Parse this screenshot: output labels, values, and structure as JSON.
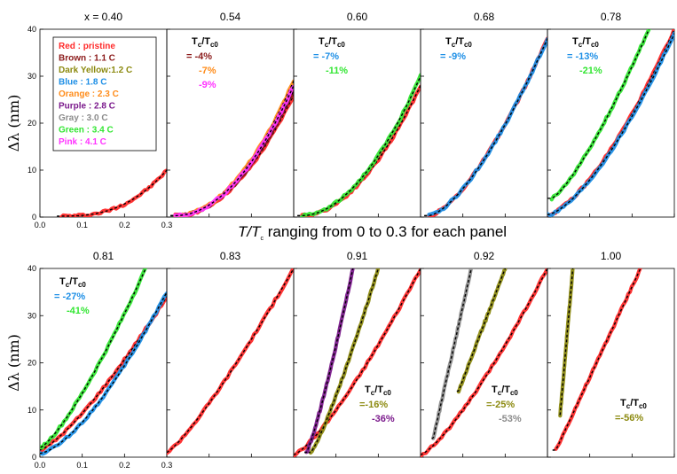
{
  "figure": {
    "mid_label_pre": "T/T",
    "mid_label_sub": "c",
    "mid_label_post": " ranging from 0 to 0.3 for each panel",
    "ylabel": "Δλ (nm)",
    "tc_header": "Tc/Tc0",
    "legend": [
      {
        "label": "Red : pristine",
        "color": "#ff2a2a"
      },
      {
        "label": "Brown : 1.1 C",
        "color": "#8b1a1a"
      },
      {
        "label": "Dark Yellow:1.2 C",
        "color": "#8c8a10"
      },
      {
        "label": "Blue : 1.8 C",
        "color": "#1e8fe6"
      },
      {
        "label": "Orange : 2.3 C",
        "color": "#ff8c1a"
      },
      {
        "label": "Purple : 2.8 C",
        "color": "#7b1a8c"
      },
      {
        "label": "Gray : 3.0 C",
        "color": "#8c8c8c"
      },
      {
        "label": "Green : 3.4 C",
        "color": "#33e633"
      },
      {
        "label": "Pink : 4.1 C",
        "color": "#ff33ff"
      }
    ],
    "colors": {
      "red": "#ff2a2a",
      "brown": "#8b1a1a",
      "darkyellow": "#8c8a10",
      "blue": "#1e8fe6",
      "orange": "#ff8c1a",
      "purple": "#7b1a8c",
      "gray": "#8c8c8c",
      "green": "#33e633",
      "pink": "#ff33ff",
      "fit": "#000000"
    }
  },
  "chart_data": [
    {
      "type": "line",
      "title": "x = 0.40",
      "xlim": [
        0,
        0.3
      ],
      "ylim": [
        0,
        40
      ],
      "xticks": [
        "0.0",
        "0.1",
        "0.2",
        "0.3"
      ],
      "yticks": [
        "0",
        "10",
        "20",
        "30",
        "40"
      ],
      "ylabel": "Δλ (nm)",
      "annotation": null,
      "series": [
        {
          "name": "Red : pristine",
          "color": "red",
          "x0": 0.05,
          "x1": 0.3,
          "y0": 0.2,
          "y1": 10,
          "p": 2.6
        }
      ]
    },
    {
      "type": "line",
      "title": "0.54",
      "xlim": [
        0,
        0.3
      ],
      "ylim": [
        0,
        40
      ],
      "annotation": {
        "values": [
          {
            "text": "= -4%",
            "color": "brown"
          },
          {
            "text": "-7%",
            "color": "orange"
          },
          {
            "text": "-9%",
            "color": "pink"
          }
        ]
      },
      "series": [
        {
          "name": "Red : pristine",
          "color": "red",
          "x0": 0.02,
          "x1": 0.3,
          "y0": 0.3,
          "y1": 26,
          "p": 2.0
        },
        {
          "name": "Brown : 1.1 C",
          "color": "brown",
          "x0": 0.02,
          "x1": 0.3,
          "y0": 0.3,
          "y1": 27,
          "p": 2.0
        },
        {
          "name": "Orange : 2.3 C",
          "color": "orange",
          "x0": 0.02,
          "x1": 0.3,
          "y0": 0.3,
          "y1": 29,
          "p": 2.0
        },
        {
          "name": "Pink : 4.1 C",
          "color": "pink",
          "x0": 0.02,
          "x1": 0.3,
          "y0": 0.3,
          "y1": 28,
          "p": 2.0
        }
      ]
    },
    {
      "type": "line",
      "title": "0.60",
      "xlim": [
        0,
        0.3
      ],
      "ylim": [
        0,
        40
      ],
      "annotation": {
        "values": [
          {
            "text": "= -7%",
            "color": "blue"
          },
          {
            "text": "-11%",
            "color": "green"
          }
        ]
      },
      "series": [
        {
          "name": "Red : pristine",
          "color": "red",
          "x0": 0.02,
          "x1": 0.3,
          "y0": 0.3,
          "y1": 28,
          "p": 1.9
        },
        {
          "name": "Green : 3.4 C",
          "color": "green",
          "x0": 0.02,
          "x1": 0.3,
          "y0": 0.3,
          "y1": 30,
          "p": 1.9
        }
      ]
    },
    {
      "type": "line",
      "title": "0.68",
      "xlim": [
        0,
        0.3
      ],
      "ylim": [
        0,
        40
      ],
      "annotation": {
        "values": [
          {
            "text": "= -9%",
            "color": "blue"
          }
        ]
      },
      "series": [
        {
          "name": "Red : pristine",
          "color": "red",
          "x0": 0.02,
          "x1": 0.3,
          "y0": 0.3,
          "y1": 38,
          "p": 1.5
        },
        {
          "name": "Blue : 1.8 C",
          "color": "blue",
          "x0": 0.02,
          "x1": 0.3,
          "y0": 0.3,
          "y1": 38,
          "p": 1.5
        }
      ]
    },
    {
      "type": "line",
      "title": "0.78",
      "xlim": [
        0,
        0.3
      ],
      "ylim": [
        0,
        40
      ],
      "annotation": {
        "values": [
          {
            "text": "= -13%",
            "color": "blue"
          },
          {
            "text": "-21%",
            "color": "green"
          }
        ]
      },
      "series": [
        {
          "name": "Red : pristine",
          "color": "red",
          "x0": 0.0,
          "x1": 0.3,
          "y0": 0.5,
          "y1": 40,
          "p": 1.5
        },
        {
          "name": "Blue : 1.8 C",
          "color": "blue",
          "x0": 0.0,
          "x1": 0.3,
          "y0": 0.5,
          "y1": 39,
          "p": 1.5
        },
        {
          "name": "Green : 3.4 C",
          "color": "green",
          "x0": 0.01,
          "x1": 0.24,
          "y0": 4,
          "y1": 40,
          "p": 1.3
        }
      ]
    },
    {
      "type": "line",
      "title": "0.81",
      "xlim": [
        0,
        0.3
      ],
      "ylim": [
        0,
        40
      ],
      "xticks": [
        "0.0",
        "0.1",
        "0.2",
        "0.3"
      ],
      "yticks": [
        "0",
        "10",
        "20",
        "30",
        "40"
      ],
      "ylabel": "Δλ (nm)",
      "annotation": {
        "values": [
          {
            "text": "= -27%",
            "color": "blue"
          },
          {
            "text": "-41%",
            "color": "green"
          }
        ]
      },
      "series": [
        {
          "name": "Red : pristine",
          "color": "red",
          "x0": 0.0,
          "x1": 0.3,
          "y0": 1.5,
          "y1": 34,
          "p": 1.3
        },
        {
          "name": "Blue : 1.8 C",
          "color": "blue",
          "x0": 0.0,
          "x1": 0.3,
          "y0": 0.8,
          "y1": 35,
          "p": 1.5
        },
        {
          "name": "Green : 3.4 C",
          "color": "green",
          "x0": 0.0,
          "x1": 0.25,
          "y0": 2,
          "y1": 40,
          "p": 1.3
        }
      ]
    },
    {
      "type": "line",
      "title": "0.83",
      "xlim": [
        0,
        0.3
      ],
      "ylim": [
        0,
        40
      ],
      "annotation": null,
      "series": [
        {
          "name": "Red : pristine",
          "color": "red",
          "x0": 0.0,
          "x1": 0.3,
          "y0": 1,
          "y1": 40,
          "p": 1.2
        }
      ]
    },
    {
      "type": "line",
      "title": "0.91",
      "xlim": [
        0,
        0.3
      ],
      "ylim": [
        0,
        40
      ],
      "annotation": {
        "values": [
          {
            "text": "=-16%",
            "color": "darkyellow"
          },
          {
            "text": "-36%",
            "color": "purple"
          }
        ]
      },
      "series": [
        {
          "name": "Red : pristine",
          "color": "red",
          "x0": 0.0,
          "x1": 0.3,
          "y0": 0.5,
          "y1": 40,
          "p": 1.3
        },
        {
          "name": "Dark Yellow:1.2 C",
          "color": "darkyellow",
          "x0": 0.04,
          "x1": 0.2,
          "y0": 1,
          "y1": 40,
          "p": 1.2
        },
        {
          "name": "Purple : 2.8 C",
          "color": "purple",
          "x0": 0.03,
          "x1": 0.14,
          "y0": 1,
          "y1": 40,
          "p": 1.2
        }
      ]
    },
    {
      "type": "line",
      "title": "0.92",
      "xlim": [
        0,
        0.3
      ],
      "ylim": [
        0,
        40
      ],
      "annotation": {
        "values": [
          {
            "text": "=-25%",
            "color": "darkyellow"
          },
          {
            "text": "-53%",
            "color": "gray"
          }
        ]
      },
      "series": [
        {
          "name": "Red : pristine",
          "color": "red",
          "x0": 0.0,
          "x1": 0.3,
          "y0": 0.5,
          "y1": 40,
          "p": 1.3
        },
        {
          "name": "Dark Yellow:1.2 C",
          "color": "darkyellow",
          "x0": 0.09,
          "x1": 0.2,
          "y0": 14,
          "y1": 40,
          "p": 1.0
        },
        {
          "name": "Gray : 3.0 C",
          "color": "gray",
          "x0": 0.03,
          "x1": 0.12,
          "y0": 4,
          "y1": 40,
          "p": 1.0
        }
      ]
    },
    {
      "type": "line",
      "title": "1.00",
      "xlim": [
        0,
        0.3
      ],
      "ylim": [
        0,
        40
      ],
      "annotation": {
        "values": [
          {
            "text": "=-56%",
            "color": "darkyellow"
          }
        ]
      },
      "series": [
        {
          "name": "Red : pristine",
          "color": "red",
          "x0": 0.02,
          "x1": 0.22,
          "y0": 1.5,
          "y1": 40,
          "p": 1.0
        },
        {
          "name": "Dark Yellow:1.2 C",
          "color": "darkyellow",
          "x0": 0.03,
          "x1": 0.06,
          "y0": 9,
          "y1": 40,
          "p": 1.0
        }
      ]
    }
  ]
}
